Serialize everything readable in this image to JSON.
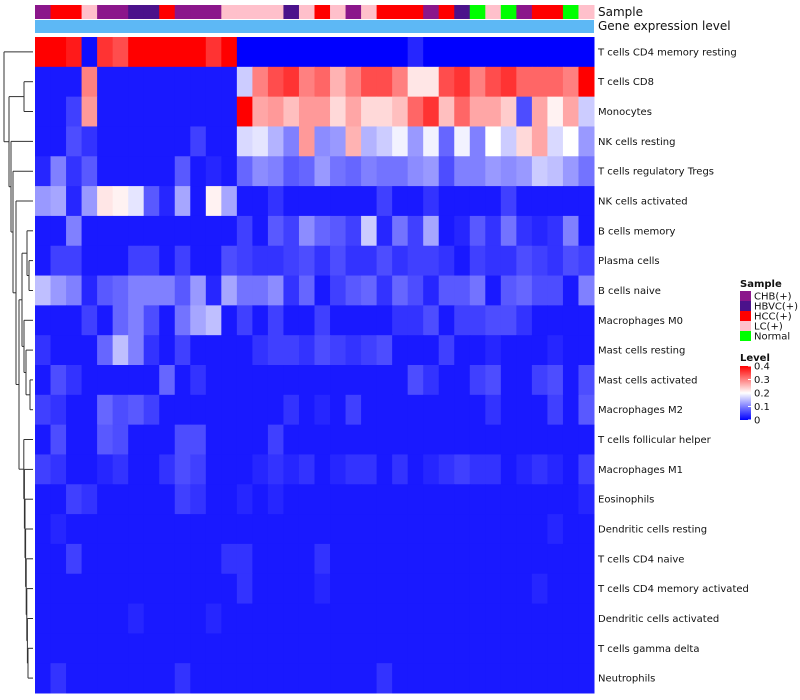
{
  "chart_data": {
    "type": "heatmap",
    "annotation_rows": [
      {
        "name": "Sample",
        "label": "Sample",
        "values": [
          "CHB(+)",
          "HCC(+)",
          "HCC(+)",
          "LC(+)",
          "CHB(+)",
          "CHB(+)",
          "HBVC(+)",
          "HBVC(+)",
          "HCC(+)",
          "CHB(+)",
          "CHB(+)",
          "CHB(+)",
          "LC(+)",
          "LC(+)",
          "LC(+)",
          "LC(+)",
          "HBVC(+)",
          "LC(+)",
          "HCC(+)",
          "LC(+)",
          "CHB(+)",
          "LC(+)",
          "HCC(+)",
          "HCC(+)",
          "HCC(+)",
          "CHB(+)",
          "HCC(+)",
          "HBVC(+)",
          "Normal",
          "LC(+)",
          "Normal",
          "CHB(+)",
          "HCC(+)",
          "HCC(+)",
          "Normal",
          "LC(+)"
        ]
      },
      {
        "name": "Gene expression level",
        "label": "Gene expression level"
      }
    ],
    "rows": [
      "T cells CD4 memory resting",
      "T cells CD8",
      "Monocytes",
      "NK cells resting",
      "T cells regulatory  Tregs",
      "NK cells activated",
      "B cells memory",
      "Plasma cells",
      "B cells naive",
      "Macrophages M0",
      "Mast cells resting",
      "Mast cells activated",
      "Macrophages M2",
      "T cells follicular helper",
      "Macrophages M1",
      "Eosinophils",
      "Dendritic cells resting",
      "T cells CD4 naive",
      "T cells CD4 memory activated",
      "Dendritic cells activated",
      "T cells gamma delta",
      "Neutrophils"
    ],
    "values": [
      [
        0.4,
        0.4,
        0.38,
        0.01,
        0.36,
        0.34,
        0.4,
        0.4,
        0.4,
        0.4,
        0.4,
        0.36,
        0.4,
        0,
        0,
        0,
        0,
        0,
        0,
        0,
        0,
        0,
        0,
        0,
        0.03,
        0,
        0,
        0,
        0,
        0,
        0,
        0,
        0,
        0,
        0,
        0
      ],
      [
        0.02,
        0.02,
        0.02,
        0.3,
        0.02,
        0.02,
        0.02,
        0.02,
        0.02,
        0.02,
        0.02,
        0.02,
        0.02,
        0.16,
        0.3,
        0.34,
        0.36,
        0.3,
        0.32,
        0.26,
        0.3,
        0.34,
        0.34,
        0.3,
        0.22,
        0.22,
        0.34,
        0.36,
        0.3,
        0.34,
        0.36,
        0.32,
        0.32,
        0.32,
        0.3,
        0.4
      ],
      [
        0.02,
        0.02,
        0.05,
        0.28,
        0.02,
        0.02,
        0.02,
        0.02,
        0.02,
        0.02,
        0.02,
        0.02,
        0.02,
        0.4,
        0.27,
        0.28,
        0.25,
        0.28,
        0.28,
        0.23,
        0.27,
        0.23,
        0.23,
        0.25,
        0.32,
        0.36,
        0.25,
        0.32,
        0.27,
        0.27,
        0.24,
        0.06,
        0.27,
        0.21,
        0.27,
        0.16
      ],
      [
        0.02,
        0.02,
        0.06,
        0.04,
        0.02,
        0.02,
        0.02,
        0.02,
        0.02,
        0.02,
        0.05,
        0.02,
        0.02,
        0.17,
        0.18,
        0.14,
        0.1,
        0.28,
        0.11,
        0.12,
        0.26,
        0.14,
        0.16,
        0.19,
        0.12,
        0.19,
        0.08,
        0.19,
        0.1,
        0.2,
        0.16,
        0.23,
        0.27,
        0.17,
        0.2,
        0.12
      ],
      [
        0.03,
        0.1,
        0.04,
        0.07,
        0.02,
        0.02,
        0.02,
        0.02,
        0.02,
        0.07,
        0.02,
        0.03,
        0.02,
        0.08,
        0.11,
        0.1,
        0.07,
        0.08,
        0.12,
        0.09,
        0.08,
        0.1,
        0.09,
        0.09,
        0.11,
        0.12,
        0.06,
        0.1,
        0.1,
        0.12,
        0.11,
        0.12,
        0.16,
        0.15,
        0.12,
        0.09
      ],
      [
        0.12,
        0.13,
        0.03,
        0.12,
        0.22,
        0.21,
        0.18,
        0.07,
        0.03,
        0.13,
        0.02,
        0.21,
        0.13,
        0.02,
        0.02,
        0.04,
        0.02,
        0.02,
        0.02,
        0.02,
        0.02,
        0.02,
        0.05,
        0.02,
        0.02,
        0.04,
        0.02,
        0.02,
        0.02,
        0.02,
        0.05,
        0.02,
        0.02,
        0.02,
        0.02,
        0.02
      ],
      [
        0.02,
        0.02,
        0.1,
        0.02,
        0.02,
        0.02,
        0.02,
        0.02,
        0.02,
        0.02,
        0.02,
        0.02,
        0.02,
        0.05,
        0.02,
        0.07,
        0.05,
        0.11,
        0.08,
        0.07,
        0.05,
        0.16,
        0.03,
        0.09,
        0.05,
        0.13,
        0.02,
        0.03,
        0.07,
        0.04,
        0.09,
        0.04,
        0.03,
        0.04,
        0.1,
        0.02
      ],
      [
        0.02,
        0.05,
        0.05,
        0.02,
        0.02,
        0.02,
        0.05,
        0.05,
        0.02,
        0.05,
        0.02,
        0.02,
        0.06,
        0.05,
        0.04,
        0.04,
        0.05,
        0.06,
        0.04,
        0.06,
        0.04,
        0.04,
        0.06,
        0.04,
        0.05,
        0.05,
        0.04,
        0.02,
        0.05,
        0.04,
        0.04,
        0.06,
        0.05,
        0.04,
        0.06,
        0.05
      ],
      [
        0.15,
        0.12,
        0.1,
        0.03,
        0.07,
        0.08,
        0.1,
        0.1,
        0.1,
        0.07,
        0.12,
        0.03,
        0.13,
        0.09,
        0.09,
        0.11,
        0.04,
        0.08,
        0.02,
        0.05,
        0.07,
        0.08,
        0.04,
        0.08,
        0.06,
        0.03,
        0.07,
        0.07,
        0.09,
        0.02,
        0.07,
        0.08,
        0.06,
        0.06,
        0.02,
        0.1
      ],
      [
        0.02,
        0.02,
        0.02,
        0.05,
        0.02,
        0.08,
        0.1,
        0.06,
        0.02,
        0.09,
        0.13,
        0.15,
        0.02,
        0.05,
        0.02,
        0.05,
        0.02,
        0.02,
        0.05,
        0.02,
        0.02,
        0.02,
        0.02,
        0.04,
        0.04,
        0.06,
        0.02,
        0.05,
        0.05,
        0.06,
        0.06,
        0.04,
        0.02,
        0.02,
        0.02,
        0.02
      ],
      [
        0.04,
        0.02,
        0.02,
        0.02,
        0.08,
        0.15,
        0.1,
        0.04,
        0.02,
        0.05,
        0.02,
        0.02,
        0.02,
        0.02,
        0.04,
        0.05,
        0.05,
        0.04,
        0.06,
        0.05,
        0.04,
        0.05,
        0.06,
        0.02,
        0.02,
        0.02,
        0.05,
        0.02,
        0.02,
        0.03,
        0.02,
        0.02,
        0.02,
        0.03,
        0.02,
        0.02
      ],
      [
        0.02,
        0.06,
        0.04,
        0.02,
        0.02,
        0.02,
        0.02,
        0.02,
        0.08,
        0.02,
        0.04,
        0.02,
        0.02,
        0.02,
        0.02,
        0.02,
        0.02,
        0.02,
        0.02,
        0.02,
        0.02,
        0.02,
        0.02,
        0.02,
        0.06,
        0.04,
        0.02,
        0.02,
        0.05,
        0.06,
        0.02,
        0.02,
        0.05,
        0.06,
        0.02,
        0.06
      ],
      [
        0.05,
        0.04,
        0.02,
        0.02,
        0.08,
        0.06,
        0.07,
        0.05,
        0.02,
        0.02,
        0.02,
        0.02,
        0.02,
        0.02,
        0.02,
        0.02,
        0.04,
        0.02,
        0.03,
        0.02,
        0.05,
        0.02,
        0.02,
        0.02,
        0.02,
        0.02,
        0.02,
        0.02,
        0.02,
        0.04,
        0.02,
        0.02,
        0.02,
        0.05,
        0.02,
        0.07
      ],
      [
        0.02,
        0.06,
        0.02,
        0.02,
        0.07,
        0.06,
        0.02,
        0.02,
        0.02,
        0.06,
        0.06,
        0.02,
        0.02,
        0.02,
        0.02,
        0.05,
        0.02,
        0.02,
        0.02,
        0.02,
        0.02,
        0.02,
        0.02,
        0.02,
        0.02,
        0.02,
        0.02,
        0.02,
        0.02,
        0.02,
        0.02,
        0.02,
        0.02,
        0.02,
        0.02,
        0.02
      ],
      [
        0.05,
        0.04,
        0.02,
        0.02,
        0.03,
        0.04,
        0.02,
        0.02,
        0.04,
        0.06,
        0.05,
        0.02,
        0.02,
        0.02,
        0.03,
        0.04,
        0.03,
        0.04,
        0.02,
        0.03,
        0.04,
        0.04,
        0.02,
        0.04,
        0.02,
        0.03,
        0.04,
        0.05,
        0.04,
        0.04,
        0.02,
        0.03,
        0.04,
        0.03,
        0.02,
        0.05
      ],
      [
        0.02,
        0.02,
        0.05,
        0.04,
        0.02,
        0.02,
        0.02,
        0.02,
        0.02,
        0.05,
        0.04,
        0.02,
        0.02,
        0.03,
        0.02,
        0.03,
        0.02,
        0.02,
        0.02,
        0.02,
        0.02,
        0.02,
        0.02,
        0.02,
        0.02,
        0.02,
        0.02,
        0.02,
        0.02,
        0.02,
        0.02,
        0.02,
        0.02,
        0.02,
        0.02,
        0.03
      ],
      [
        0.02,
        0.03,
        0.02,
        0.02,
        0.02,
        0.02,
        0.02,
        0.02,
        0.02,
        0.02,
        0.02,
        0.02,
        0.02,
        0.02,
        0.02,
        0.02,
        0.02,
        0.02,
        0.02,
        0.02,
        0.02,
        0.02,
        0.02,
        0.02,
        0.02,
        0.02,
        0.02,
        0.02,
        0.02,
        0.02,
        0.02,
        0.02,
        0.02,
        0.03,
        0.02,
        0.02
      ],
      [
        0.02,
        0.02,
        0.05,
        0.02,
        0.02,
        0.02,
        0.02,
        0.02,
        0.02,
        0.02,
        0.02,
        0.02,
        0.04,
        0.04,
        0.02,
        0.02,
        0.02,
        0.02,
        0.04,
        0.02,
        0.02,
        0.02,
        0.02,
        0.02,
        0.02,
        0.02,
        0.02,
        0.02,
        0.02,
        0.02,
        0.02,
        0.02,
        0.02,
        0.02,
        0.02,
        0.02
      ],
      [
        0.02,
        0.02,
        0.02,
        0.02,
        0.02,
        0.02,
        0.02,
        0.02,
        0.02,
        0.02,
        0.02,
        0.02,
        0.02,
        0.04,
        0.02,
        0.02,
        0.02,
        0.02,
        0.03,
        0.02,
        0.02,
        0.02,
        0.02,
        0.02,
        0.02,
        0.02,
        0.02,
        0.02,
        0.02,
        0.02,
        0.02,
        0.02,
        0.03,
        0.02,
        0.02,
        0.02
      ],
      [
        0.02,
        0.02,
        0.02,
        0.02,
        0.02,
        0.02,
        0.03,
        0.02,
        0.02,
        0.02,
        0.02,
        0.03,
        0.02,
        0.02,
        0.02,
        0.02,
        0.02,
        0.02,
        0.02,
        0.02,
        0.02,
        0.02,
        0.02,
        0.02,
        0.02,
        0.02,
        0.02,
        0.02,
        0.02,
        0.02,
        0.02,
        0.02,
        0.02,
        0.02,
        0.02,
        0.02
      ],
      [
        0.02,
        0.02,
        0.02,
        0.02,
        0.02,
        0.02,
        0.02,
        0.02,
        0.02,
        0.02,
        0.02,
        0.02,
        0.02,
        0.02,
        0.02,
        0.02,
        0.02,
        0.02,
        0.02,
        0.02,
        0.02,
        0.02,
        0.02,
        0.02,
        0.02,
        0.02,
        0.02,
        0.02,
        0.02,
        0.02,
        0.02,
        0.02,
        0.02,
        0.02,
        0.02,
        0.02
      ],
      [
        0.02,
        0.04,
        0.02,
        0.02,
        0.02,
        0.02,
        0.02,
        0.02,
        0.02,
        0.04,
        0.02,
        0.02,
        0.02,
        0.02,
        0.02,
        0.02,
        0.02,
        0.02,
        0.02,
        0.02,
        0.02,
        0.02,
        0.04,
        0.02,
        0.02,
        0.02,
        0.02,
        0.02,
        0.02,
        0.02,
        0.02,
        0.02,
        0.02,
        0.02,
        0.02,
        0.02
      ]
    ],
    "legend": {
      "sample": {
        "title": "Sample",
        "entries": [
          {
            "label": "CHB(+)",
            "color": "#8b168b"
          },
          {
            "label": "HBVC(+)",
            "color": "#4b128b"
          },
          {
            "label": "HCC(+)",
            "color": "#ff0000"
          },
          {
            "label": "LC(+)",
            "color": "#ffc0cb"
          },
          {
            "label": "Normal",
            "color": "#00ff00"
          }
        ]
      },
      "level": {
        "title": "Level",
        "ticks": [
          "0.4",
          "0.3",
          "0.2",
          "0.1",
          "0"
        ],
        "range": [
          0,
          0.4
        ]
      }
    },
    "colors": {
      "low": "#0000ff",
      "mid": "#ffffff",
      "high": "#ff0000",
      "expression_bar": "#5db8f5"
    },
    "position": "legend right"
  }
}
